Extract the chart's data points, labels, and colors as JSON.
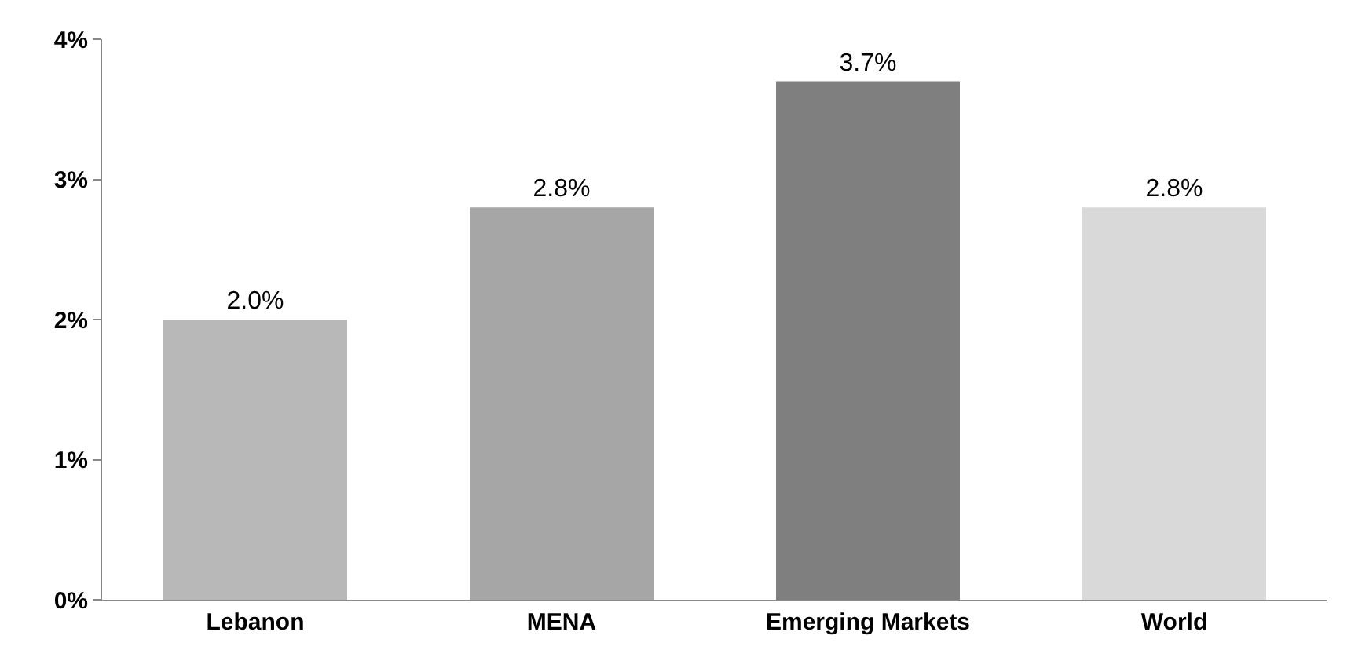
{
  "chart_data": {
    "type": "bar",
    "categories": [
      "Lebanon",
      "MENA",
      "Emerging Markets",
      "World"
    ],
    "values": [
      2.0,
      2.8,
      3.7,
      2.8
    ],
    "colors": [
      "#b8b8b8",
      "#a6a6a6",
      "#7f7f7f",
      "#d9d9d9"
    ],
    "value_labels": [
      "2.0%",
      "2.8%",
      "3.7%",
      "2.8%"
    ],
    "ylim": [
      0,
      4
    ],
    "yticks": [
      {
        "value": 0,
        "label": "0%"
      },
      {
        "value": 1,
        "label": "1%"
      },
      {
        "value": 2,
        "label": "2%"
      },
      {
        "value": 3,
        "label": "3%"
      },
      {
        "value": 4,
        "label": "4%"
      }
    ],
    "grid": false
  }
}
